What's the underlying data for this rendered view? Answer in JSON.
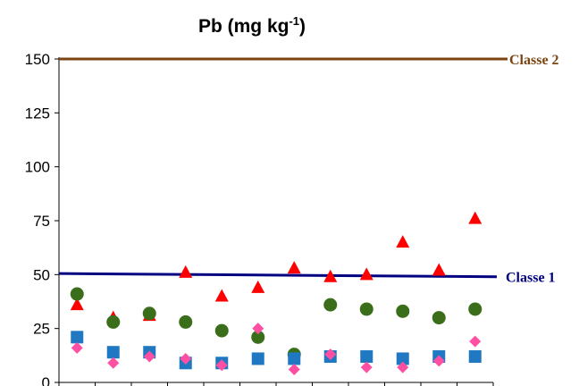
{
  "chart_data": {
    "type": "scatter",
    "title": "Pb (mg kg",
    "title_sup": "-1",
    "title_end": ")",
    "ylim": [
      0,
      150
    ],
    "y_ticks": [
      "0",
      "25",
      "50",
      "75",
      "100",
      "125",
      "150"
    ],
    "x_count": 12,
    "grid": false,
    "reference_lines": [
      {
        "label": "Classe 2",
        "y_start": 150,
        "y_end": 150,
        "color": "#7a4513"
      },
      {
        "label": "Classe 1",
        "y_start": 50.5,
        "y_end": 49,
        "color": "#000080"
      }
    ],
    "series": [
      {
        "marker": "triangle",
        "color": "#ff0000",
        "values": [
          36,
          30,
          31,
          51,
          40,
          44,
          53,
          49,
          50,
          65,
          52,
          76
        ]
      },
      {
        "marker": "circle",
        "color": "#3a6e1a",
        "values": [
          41,
          28,
          32,
          28,
          24,
          21,
          13,
          36,
          34,
          33,
          30,
          34
        ]
      },
      {
        "marker": "square",
        "color": "#1f78c1",
        "values": [
          21,
          14,
          14,
          9,
          9,
          11,
          11,
          12,
          12,
          11,
          12,
          12
        ]
      },
      {
        "marker": "diamond",
        "color": "#ff4fa3",
        "values": [
          16,
          9,
          12,
          11,
          8,
          25,
          6,
          13,
          7,
          7,
          10,
          19
        ]
      }
    ]
  }
}
